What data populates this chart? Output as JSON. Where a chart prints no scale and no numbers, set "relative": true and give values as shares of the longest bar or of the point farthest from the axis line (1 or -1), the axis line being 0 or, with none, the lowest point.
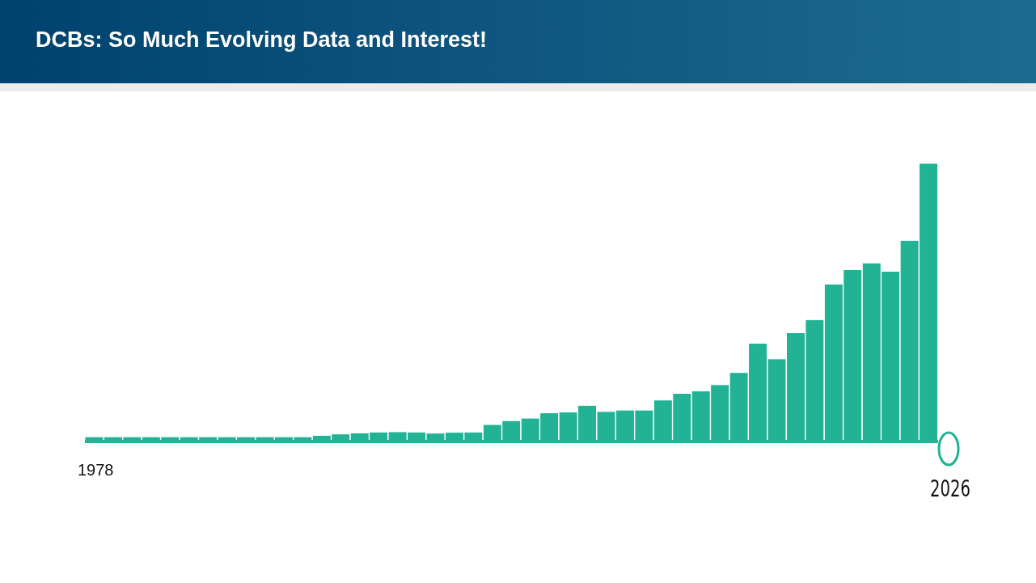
{
  "chart_data": {
    "type": "bar",
    "title": "DCBs: So Much Evolving Data and Interest!",
    "relative": true,
    "categories": [
      null,
      null,
      null,
      null,
      null,
      null,
      null,
      null,
      null,
      null,
      null,
      null,
      null,
      null,
      null,
      null,
      null,
      null,
      null,
      null,
      null,
      null,
      null,
      null,
      null,
      null,
      null,
      null,
      null,
      null,
      null,
      null,
      null,
      null,
      null,
      null,
      null,
      null,
      null,
      null,
      null,
      null,
      null,
      null,
      null
    ],
    "values": [
      0.017,
      0.017,
      0.017,
      0.017,
      0.017,
      0.017,
      0.017,
      0.017,
      0.017,
      0.017,
      0.017,
      0.017,
      0.022,
      0.027,
      0.031,
      0.034,
      0.035,
      0.034,
      0.03,
      0.033,
      0.034,
      0.061,
      0.075,
      0.084,
      0.103,
      0.106,
      0.13,
      0.108,
      0.113,
      0.113,
      0.149,
      0.173,
      0.182,
      0.204,
      0.248,
      0.353,
      0.297,
      0.391,
      0.438,
      0.566,
      0.618,
      0.642,
      0.612,
      0.723,
      1
    ],
    "color": "#21b394",
    "annotations": [
      "1978",
      "2026"
    ]
  }
}
